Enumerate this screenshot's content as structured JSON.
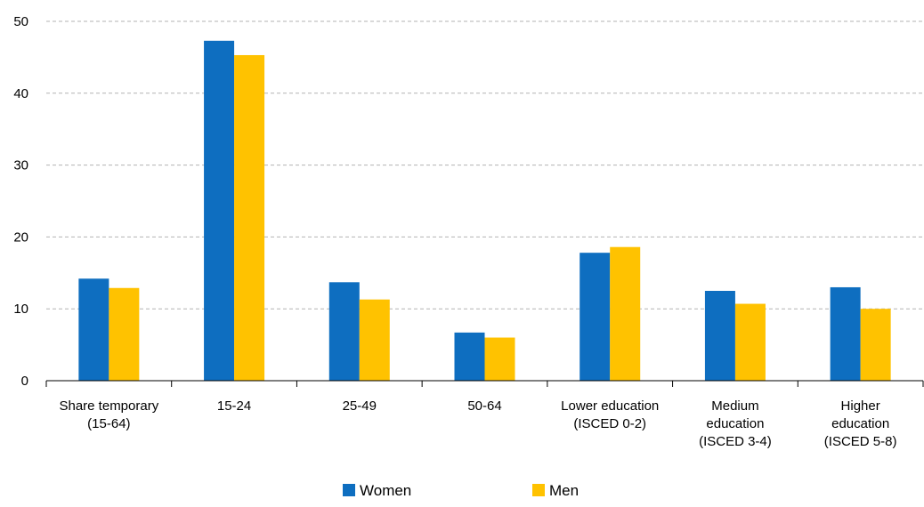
{
  "chart_data": {
    "type": "bar",
    "categories": [
      [
        "Share temporary",
        "(15-64)"
      ],
      [
        "15-24"
      ],
      [
        "25-49"
      ],
      [
        "50-64"
      ],
      [
        "Lower education",
        "(ISCED 0-2)"
      ],
      [
        "Medium",
        "education",
        "(ISCED 3-4)"
      ],
      [
        "Higher",
        "education",
        "(ISCED 5-8)"
      ]
    ],
    "series": [
      {
        "name": "Women",
        "color": "#0E6EC0",
        "values": [
          14.2,
          47.3,
          13.7,
          6.7,
          17.8,
          12.5,
          13.0
        ]
      },
      {
        "name": "Men",
        "color": "#FFC200",
        "values": [
          12.9,
          45.3,
          11.3,
          6.0,
          18.6,
          10.7,
          10.0
        ]
      }
    ],
    "ylim": [
      0,
      50
    ],
    "yticks": [
      0,
      10,
      20,
      30,
      40,
      50
    ],
    "grid": true,
    "legend_position": "bottom-center",
    "title": "",
    "xlabel": "",
    "ylabel": ""
  }
}
